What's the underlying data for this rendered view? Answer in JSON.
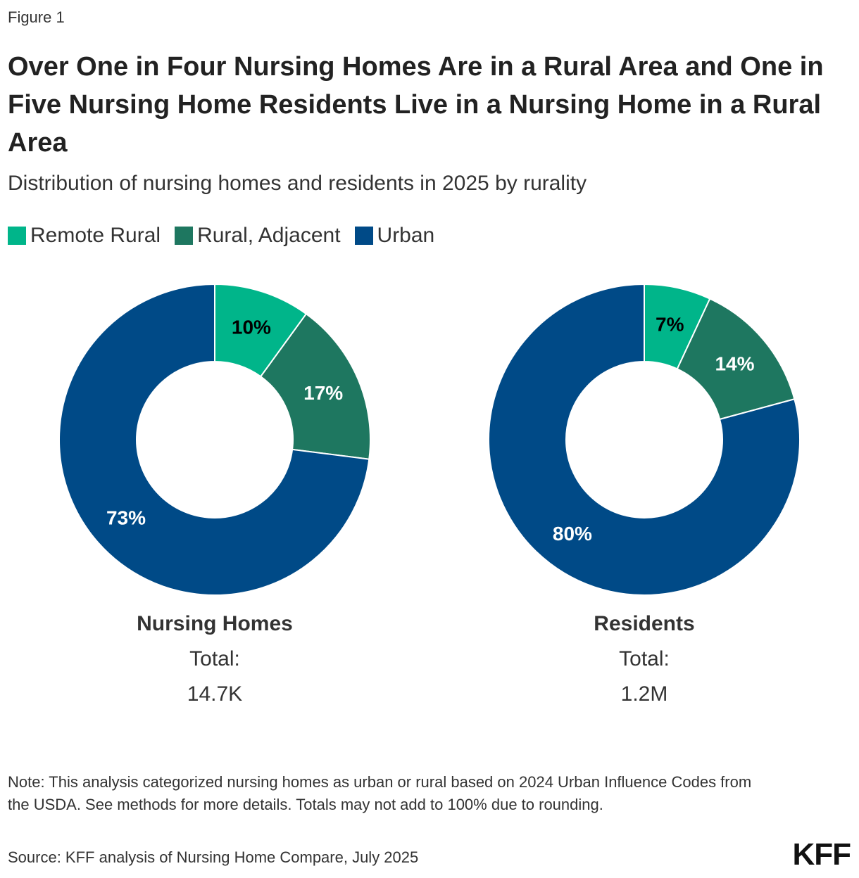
{
  "figure_label": "Figure 1",
  "title": "Over One in Four Nursing Homes Are in a Rural Area and One in Five Nursing Home Residents Live in a Nursing Home in a Rural Area",
  "subtitle": "Distribution of nursing homes and residents in 2025 by rurality",
  "legend": [
    {
      "label": "Remote Rural",
      "color": "#00B58A"
    },
    {
      "label": "Rural, Adjacent",
      "color": "#1E7760"
    },
    {
      "label": "Urban",
      "color": "#004A87"
    }
  ],
  "chart_data": [
    {
      "type": "pie",
      "name": "Nursing Homes",
      "categories": [
        "Remote Rural",
        "Rural, Adjacent",
        "Urban"
      ],
      "values": [
        10,
        17,
        73
      ],
      "labels": [
        "10%",
        "17%",
        "73%"
      ],
      "total_label": "Total:",
      "total_value": "14.7K"
    },
    {
      "type": "pie",
      "name": "Residents",
      "categories": [
        "Remote Rural",
        "Rural, Adjacent",
        "Urban"
      ],
      "values": [
        7,
        14,
        80
      ],
      "labels": [
        "7%",
        "14%",
        "80%"
      ],
      "total_label": "Total:",
      "total_value": "1.2M"
    }
  ],
  "label_colors": [
    "#000000",
    "#ffffff",
    "#ffffff"
  ],
  "note": "Note: This analysis categorized nursing homes as urban or rural based on 2024 Urban Influence Codes from the USDA. See methods for more details. Totals may not add to 100% due to rounding.",
  "source": "Source: KFF analysis of Nursing Home Compare, July 2025",
  "logo": "KFF"
}
